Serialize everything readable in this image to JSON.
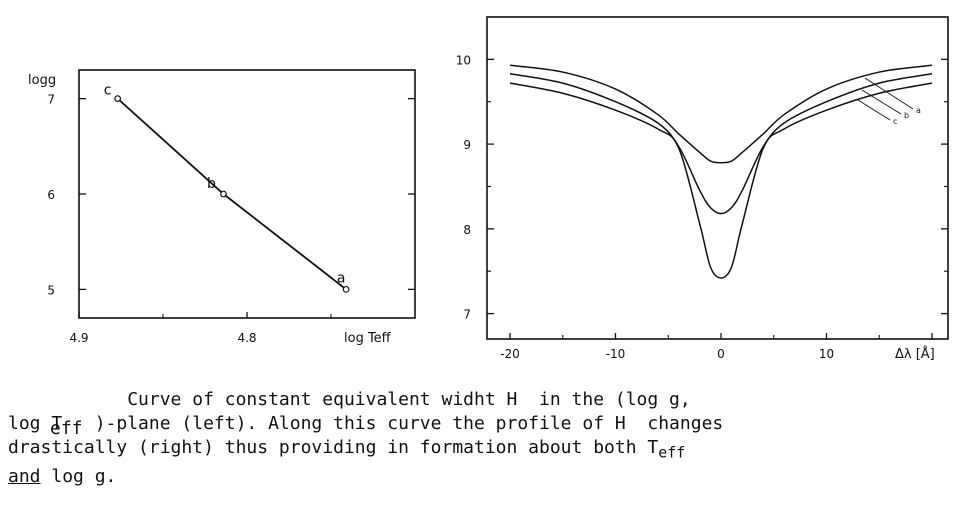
{
  "chart_data": [
    {
      "type": "line",
      "ylabel": "logg",
      "xlabel": "log Teff",
      "xlim": [
        4.9,
        4.7
      ],
      "x_ticks": [
        "4.9",
        "4.8"
      ],
      "ylim": [
        7.3,
        4.7
      ],
      "y_ticks": [
        "5",
        "6",
        "7"
      ],
      "series": [
        {
          "x": [
            4.877,
            4.814,
            4.741
          ],
          "y": [
            7.0,
            6.0,
            5.0
          ]
        }
      ],
      "point_labels": [
        "c",
        "b",
        "a"
      ]
    },
    {
      "type": "line",
      "xlabel": "Δλ [Å]",
      "xlim": [
        -20,
        20
      ],
      "x_ticks": [
        "-20",
        "-10",
        "0",
        "10"
      ],
      "ylim": [
        6.7,
        10.5
      ],
      "y_ticks": [
        "7",
        "8",
        "9",
        "10"
      ],
      "series": [
        {
          "name": "a",
          "x": [
            -20,
            -15,
            -10,
            -6,
            -4,
            -2,
            -1,
            0,
            1,
            2,
            4,
            6,
            10,
            15,
            20
          ],
          "y": [
            9.93,
            9.85,
            9.65,
            9.35,
            9.12,
            8.9,
            8.8,
            8.78,
            8.8,
            8.9,
            9.12,
            9.35,
            9.65,
            9.85,
            9.93
          ]
        },
        {
          "name": "b",
          "x": [
            -20,
            -15,
            -10,
            -6,
            -4,
            -2,
            -1,
            0,
            1,
            2,
            4,
            6,
            10,
            15,
            20
          ],
          "y": [
            9.83,
            9.72,
            9.5,
            9.25,
            8.97,
            8.45,
            8.25,
            8.18,
            8.25,
            8.45,
            8.97,
            9.25,
            9.5,
            9.72,
            9.83
          ]
        },
        {
          "name": "c",
          "x": [
            -20,
            -15,
            -10,
            -6,
            -4,
            -2,
            -1,
            0,
            1,
            2,
            4,
            6,
            10,
            15,
            20
          ],
          "y": [
            9.72,
            9.6,
            9.4,
            9.18,
            8.95,
            8.05,
            7.55,
            7.42,
            7.55,
            8.05,
            8.95,
            9.18,
            9.4,
            9.6,
            9.72
          ]
        }
      ]
    }
  ],
  "caption": {
    "line1": "           Curve of constant equivalent widht H  in the (log g,",
    "line2": "log T   )-plane (left). Along this curve the profile of H  changes",
    "line2_sub": "eff",
    "line3": "drastically (right) thus providing in formation about both T",
    "line3_sub": "eff",
    "line4_underlined": "and",
    "line4_rest": " log g."
  }
}
